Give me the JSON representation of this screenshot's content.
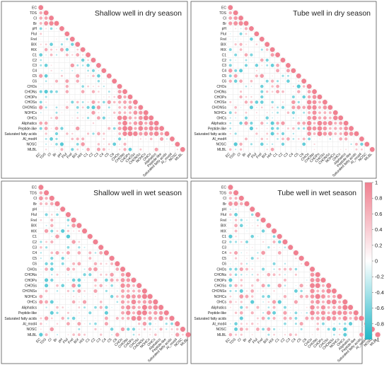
{
  "chart_data": [
    {
      "type": "heatmap",
      "title": "Shallow well in dry season",
      "variables": [
        "EC",
        "TDS",
        "Cl",
        "Br",
        "pH",
        "Flul",
        "Frel",
        "BIX",
        "HIX",
        "C1",
        "C2",
        "C3",
        "C4",
        "C5",
        "C6",
        "CHOs",
        "CHONs",
        "CHOPs",
        "CHOSs",
        "CHONSs",
        "NOHCs",
        "OHCs",
        "Aliphatics",
        "Peptide-like",
        "Saturated fatty acids",
        "Al_mod4",
        "NOSC",
        "MLBL"
      ],
      "matrix": "lower-triangular correlation, values shown as circles (size and color by r)",
      "seed": 11,
      "value_range": [
        -1,
        1
      ]
    },
    {
      "type": "heatmap",
      "title": "Tube well in dry season",
      "variables": [
        "EC",
        "TDS",
        "Cl",
        "Br",
        "pH",
        "Flul",
        "Frel",
        "BIX",
        "HIX",
        "C1",
        "C2",
        "C3",
        "C4",
        "C5",
        "C6",
        "CHOs",
        "CHONs",
        "CHOPs",
        "CHOSs",
        "CHONSs",
        "NOHCs",
        "OHCs",
        "Aliphatics",
        "Peptide-like",
        "Saturated fatty acids",
        "Al_mod4",
        "NOSC",
        "MLBL"
      ],
      "matrix": "lower-triangular correlation, values shown as circles (size and color by r)",
      "seed": 23,
      "value_range": [
        -1,
        1
      ]
    },
    {
      "type": "heatmap",
      "title": "Shallow well in wet season",
      "variables": [
        "EC",
        "TDS",
        "Cl",
        "Br",
        "pH",
        "Flul",
        "Frel",
        "BIX",
        "HIX",
        "C1",
        "C2",
        "C3",
        "C4",
        "C5",
        "C6",
        "CHOs",
        "CHONs",
        "CHOPs",
        "CHOSs",
        "CHONSs",
        "NOHCs",
        "OHCs",
        "Aliphatics",
        "Peptide-like",
        "Saturated fatty acids",
        "Al_mod4",
        "NOSC",
        "MLBL"
      ],
      "matrix": "lower-triangular correlation, values shown as circles (size and color by r)",
      "seed": 37,
      "value_range": [
        -1,
        1
      ]
    },
    {
      "type": "heatmap",
      "title": "Tube well in wet season",
      "variables": [
        "EC",
        "TDS",
        "Cl",
        "Br",
        "pH",
        "Flul",
        "Frel",
        "BIX",
        "HIX",
        "C1",
        "C2",
        "C3",
        "C4",
        "C5",
        "C6",
        "CHOs",
        "CHONs",
        "CHOPs",
        "CHOSs",
        "CHONSs",
        "NOHCs",
        "OHCs",
        "Aliphatics",
        "Peptide-like",
        "Saturated fatty acids",
        "Al_mod4",
        "NOSC",
        "MLBL"
      ],
      "matrix": "lower-triangular correlation, values shown as circles (size and color by r)",
      "seed": 53,
      "value_range": [
        -1,
        1
      ]
    }
  ],
  "colorbar": {
    "ticks": [
      "1",
      "0.8",
      "0.6",
      "0.4",
      "0.2",
      "0",
      "-0.2",
      "-0.4",
      "-0.6",
      "-0.8",
      "-1"
    ],
    "positive_color": "#f08090",
    "negative_color": "#22b8c8",
    "neutral_color": "#ffffff"
  }
}
